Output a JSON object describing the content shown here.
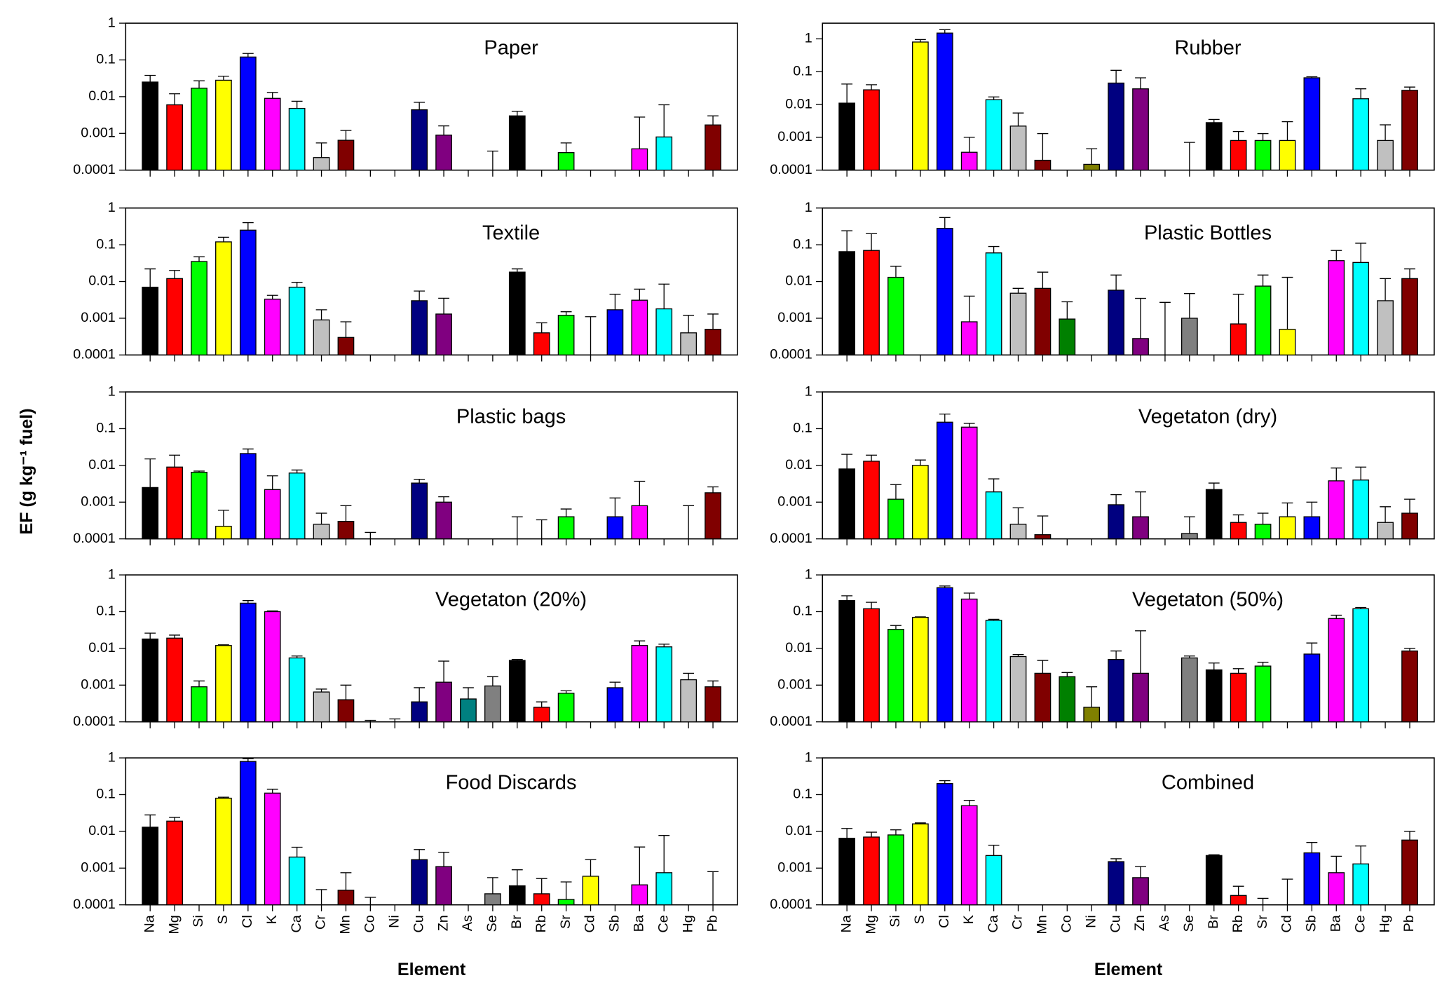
{
  "chart_data": [
    {
      "type": "bar",
      "title": "Paper",
      "log_scale": true,
      "ylim": [
        0.0001,
        1
      ],
      "yticks": [
        0.0001,
        0.001,
        0.01,
        0.1,
        1
      ],
      "categories": [
        "Na",
        "Mg",
        "Si",
        "S",
        "Cl",
        "K",
        "Ca",
        "Cr",
        "Mn",
        "Co",
        "Ni",
        "Cu",
        "Zn",
        "As",
        "Se",
        "Br",
        "Rb",
        "Sr",
        "Cd",
        "Sb",
        "Ba",
        "Ce",
        "Hg",
        "Pb"
      ],
      "colors": [
        "#000000",
        "#ff0000",
        "#00ff00",
        "#ffff00",
        "#0000ff",
        "#ff00ff",
        "#00ffff",
        "#c0c0c0",
        "#800000",
        "#008000",
        "#808000",
        "#000080",
        "#800080",
        "#008080",
        "#808080",
        "#000000",
        "#ff0000",
        "#00ff00",
        "#ffff00",
        "#0000ff",
        "#ff00ff",
        "#00ffff",
        "#c0c0c0",
        "#800000"
      ],
      "values": [
        0.025,
        0.006,
        0.017,
        0.028,
        0.12,
        0.009,
        0.0048,
        0.00022,
        0.00065,
        null,
        null,
        0.0044,
        0.0009,
        null,
        5e-05,
        0.003,
        null,
        0.0003,
        null,
        null,
        0.00038,
        0.0008,
        null,
        0.0017
      ],
      "errors": [
        0.013,
        0.006,
        0.01,
        0.008,
        0.03,
        0.004,
        0.0027,
        0.00033,
        0.00055,
        null,
        null,
        0.0026,
        0.0007,
        null,
        0.00028,
        0.001,
        null,
        0.00025,
        null,
        null,
        0.0024,
        0.0052,
        null,
        0.0013
      ]
    },
    {
      "type": "bar",
      "title": "Rubber",
      "log_scale": true,
      "ylim": [
        0.0001,
        3
      ],
      "yticks": [
        0.0001,
        0.001,
        0.01,
        0.1,
        1
      ],
      "categories": [
        "Na",
        "Mg",
        "Si",
        "S",
        "Cl",
        "K",
        "Ca",
        "Cr",
        "Mn",
        "Co",
        "Ni",
        "Cu",
        "Zn",
        "As",
        "Se",
        "Br",
        "Rb",
        "Sr",
        "Cd",
        "Sb",
        "Ba",
        "Ce",
        "Hg",
        "Pb"
      ],
      "colors": [
        "#000000",
        "#ff0000",
        "#00ff00",
        "#ffff00",
        "#0000ff",
        "#ff00ff",
        "#00ffff",
        "#c0c0c0",
        "#800000",
        "#008000",
        "#808000",
        "#000080",
        "#800080",
        "#008080",
        "#808080",
        "#000000",
        "#ff0000",
        "#00ff00",
        "#ffff00",
        "#0000ff",
        "#ff00ff",
        "#00ffff",
        "#c0c0c0",
        "#800000"
      ],
      "values": [
        0.011,
        0.028,
        null,
        0.8,
        1.5,
        0.00035,
        0.014,
        0.0022,
        0.0002,
        null,
        0.00015,
        0.045,
        0.03,
        null,
        5e-05,
        0.0028,
        0.0008,
        0.0008,
        0.0008,
        0.065,
        null,
        0.015,
        0.0008,
        0.027
      ],
      "errors": [
        0.031,
        0.012,
        null,
        0.15,
        0.4,
        0.00065,
        0.003,
        0.0033,
        0.0011,
        null,
        0.0003,
        0.065,
        0.035,
        null,
        0.00065,
        0.0007,
        0.0007,
        0.0005,
        0.0022,
        0.005,
        null,
        0.015,
        0.0016,
        0.007
      ]
    },
    {
      "type": "bar",
      "title": "Textile",
      "log_scale": true,
      "ylim": [
        0.0001,
        1
      ],
      "yticks": [
        0.0001,
        0.001,
        0.01,
        0.1,
        1
      ],
      "categories": [
        "Na",
        "Mg",
        "Si",
        "S",
        "Cl",
        "K",
        "Ca",
        "Cr",
        "Mn",
        "Co",
        "Ni",
        "Cu",
        "Zn",
        "As",
        "Se",
        "Br",
        "Rb",
        "Sr",
        "Cd",
        "Sb",
        "Ba",
        "Ce",
        "Hg",
        "Pb"
      ],
      "colors": [
        "#000000",
        "#ff0000",
        "#00ff00",
        "#ffff00",
        "#0000ff",
        "#ff00ff",
        "#00ffff",
        "#c0c0c0",
        "#800000",
        "#008000",
        "#808000",
        "#000080",
        "#800080",
        "#008080",
        "#808080",
        "#000000",
        "#ff0000",
        "#00ff00",
        "#ffff00",
        "#0000ff",
        "#ff00ff",
        "#00ffff",
        "#c0c0c0",
        "#800000"
      ],
      "values": [
        0.007,
        0.012,
        0.035,
        0.12,
        0.25,
        0.0033,
        0.007,
        0.0009,
        0.0003,
        null,
        null,
        0.003,
        0.0013,
        null,
        null,
        0.018,
        0.0004,
        0.0012,
        5e-05,
        0.0017,
        0.0031,
        0.0018,
        0.0004,
        0.0005
      ],
      "errors": [
        0.015,
        0.008,
        0.012,
        0.04,
        0.15,
        0.0009,
        0.0025,
        0.0008,
        0.0005,
        null,
        null,
        0.0025,
        0.0022,
        null,
        null,
        0.004,
        0.00035,
        0.0003,
        0.00105,
        0.0028,
        0.0031,
        0.0067,
        0.0008,
        0.0008
      ]
    },
    {
      "type": "bar",
      "title": "Plastic Bottles",
      "log_scale": true,
      "ylim": [
        0.0001,
        1
      ],
      "yticks": [
        0.0001,
        0.001,
        0.01,
        0.1,
        1
      ],
      "categories": [
        "Na",
        "Mg",
        "Si",
        "S",
        "Cl",
        "K",
        "Ca",
        "Cr",
        "Mn",
        "Co",
        "Ni",
        "Cu",
        "Zn",
        "As",
        "Se",
        "Br",
        "Rb",
        "Sr",
        "Cd",
        "Sb",
        "Ba",
        "Ce",
        "Hg",
        "Pb"
      ],
      "colors": [
        "#000000",
        "#ff0000",
        "#00ff00",
        "#ffff00",
        "#0000ff",
        "#ff00ff",
        "#00ffff",
        "#c0c0c0",
        "#800000",
        "#008000",
        "#808000",
        "#000080",
        "#800080",
        "#008080",
        "#808080",
        "#000000",
        "#ff0000",
        "#00ff00",
        "#ffff00",
        "#0000ff",
        "#ff00ff",
        "#00ffff",
        "#c0c0c0",
        "#800000"
      ],
      "values": [
        0.065,
        0.07,
        0.013,
        null,
        0.28,
        0.0008,
        0.06,
        0.0048,
        0.0065,
        0.00095,
        null,
        0.0058,
        0.00028,
        5e-05,
        0.001,
        null,
        0.0007,
        0.0075,
        0.0005,
        null,
        0.037,
        0.033,
        0.003,
        0.012
      ],
      "errors": [
        0.175,
        0.13,
        0.013,
        null,
        0.27,
        0.0032,
        0.03,
        0.0017,
        0.0115,
        0.00185,
        null,
        0.0092,
        0.0032,
        0.00265,
        0.0037,
        null,
        0.0038,
        0.0075,
        0.0125,
        null,
        0.033,
        0.077,
        0.009,
        0.01
      ]
    },
    {
      "type": "bar",
      "title": "Plastic bags",
      "y_label": "EF (g kg⁻¹ fuel)",
      "log_scale": true,
      "ylim": [
        0.0001,
        1
      ],
      "yticks": [
        0.0001,
        0.001,
        0.01,
        0.1,
        1
      ],
      "categories": [
        "Na",
        "Mg",
        "Si",
        "S",
        "Cl",
        "K",
        "Ca",
        "Cr",
        "Mn",
        "Co",
        "Ni",
        "Cu",
        "Zn",
        "As",
        "Se",
        "Br",
        "Rb",
        "Sr",
        "Cd",
        "Sb",
        "Ba",
        "Ce",
        "Hg",
        "Pb"
      ],
      "colors": [
        "#000000",
        "#ff0000",
        "#00ff00",
        "#ffff00",
        "#0000ff",
        "#ff00ff",
        "#00ffff",
        "#c0c0c0",
        "#800000",
        "#008000",
        "#808000",
        "#000080",
        "#800080",
        "#008080",
        "#808080",
        "#000000",
        "#ff0000",
        "#00ff00",
        "#ffff00",
        "#0000ff",
        "#ff00ff",
        "#00ffff",
        "#c0c0c0",
        "#800000"
      ],
      "values": [
        0.0025,
        0.009,
        0.0065,
        0.00022,
        0.021,
        0.0022,
        0.0062,
        0.00025,
        0.0003,
        5e-05,
        null,
        0.0033,
        0.001,
        null,
        null,
        5e-05,
        5e-05,
        0.0004,
        null,
        0.0004,
        0.0008,
        null,
        5e-05,
        0.0018
      ],
      "errors": [
        0.0125,
        0.01,
        0.0005,
        0.00038,
        0.007,
        0.003,
        0.0013,
        0.00025,
        0.0005,
        0.0001,
        null,
        0.0009,
        0.0004,
        null,
        null,
        0.00035,
        0.00028,
        0.00025,
        null,
        0.0009,
        0.0029,
        null,
        0.00075,
        0.0008
      ]
    },
    {
      "type": "bar",
      "title": "Vegetaton (dry)",
      "log_scale": true,
      "ylim": [
        0.0001,
        1
      ],
      "yticks": [
        0.0001,
        0.001,
        0.01,
        0.1,
        1
      ],
      "categories": [
        "Na",
        "Mg",
        "Si",
        "S",
        "Cl",
        "K",
        "Ca",
        "Cr",
        "Mn",
        "Co",
        "Ni",
        "Cu",
        "Zn",
        "As",
        "Se",
        "Br",
        "Rb",
        "Sr",
        "Cd",
        "Sb",
        "Ba",
        "Ce",
        "Hg",
        "Pb"
      ],
      "colors": [
        "#000000",
        "#ff0000",
        "#00ff00",
        "#ffff00",
        "#0000ff",
        "#ff00ff",
        "#00ffff",
        "#c0c0c0",
        "#800000",
        "#008000",
        "#808000",
        "#000080",
        "#800080",
        "#008080",
        "#808080",
        "#000000",
        "#ff0000",
        "#00ff00",
        "#ffff00",
        "#0000ff",
        "#ff00ff",
        "#00ffff",
        "#c0c0c0",
        "#800000"
      ],
      "values": [
        0.008,
        0.013,
        0.0012,
        0.01,
        0.15,
        0.11,
        0.0019,
        0.00025,
        0.00013,
        null,
        null,
        0.00085,
        0.0004,
        null,
        0.00014,
        0.0022,
        0.00028,
        0.00025,
        0.0004,
        0.0004,
        0.0038,
        0.004,
        0.00028,
        0.0005
      ],
      "errors": [
        0.012,
        0.006,
        0.0018,
        0.004,
        0.1,
        0.03,
        0.0024,
        0.00045,
        0.00029,
        null,
        null,
        0.00075,
        0.0015,
        null,
        0.00026,
        0.0011,
        0.00017,
        0.00025,
        0.00055,
        0.0006,
        0.0047,
        0.005,
        0.00047,
        0.0007
      ]
    },
    {
      "type": "bar",
      "title": "Vegetaton (20%)",
      "log_scale": true,
      "ylim": [
        0.0001,
        1
      ],
      "yticks": [
        0.0001,
        0.001,
        0.01,
        0.1,
        1
      ],
      "categories": [
        "Na",
        "Mg",
        "Si",
        "S",
        "Cl",
        "K",
        "Ca",
        "Cr",
        "Mn",
        "Co",
        "Ni",
        "Cu",
        "Zn",
        "As",
        "Se",
        "Br",
        "Rb",
        "Sr",
        "Cd",
        "Sb",
        "Ba",
        "Ce",
        "Hg",
        "Pb"
      ],
      "colors": [
        "#000000",
        "#ff0000",
        "#00ff00",
        "#ffff00",
        "#0000ff",
        "#ff00ff",
        "#00ffff",
        "#c0c0c0",
        "#800000",
        "#008000",
        "#808000",
        "#000080",
        "#800080",
        "#008080",
        "#808080",
        "#000000",
        "#ff0000",
        "#00ff00",
        "#ffff00",
        "#0000ff",
        "#ff00ff",
        "#00ffff",
        "#c0c0c0",
        "#800000"
      ],
      "values": [
        0.018,
        0.019,
        0.0009,
        0.012,
        0.17,
        0.1,
        0.0055,
        0.00065,
        0.0004,
        5e-05,
        5e-05,
        0.00035,
        0.0012,
        0.00042,
        0.00095,
        0.0047,
        0.00025,
        0.0006,
        null,
        0.00085,
        0.012,
        0.011,
        0.0014,
        0.0009
      ],
      "errors": [
        0.008,
        0.004,
        0.0004,
        0.0005,
        0.03,
        0.005,
        0.0007,
        0.00013,
        0.0006,
        6e-05,
        7e-05,
        0.0005,
        0.0033,
        0.00043,
        0.00075,
        0.0003,
        0.0001,
        0.0001,
        null,
        0.00035,
        0.004,
        0.002,
        0.0007,
        0.0004
      ]
    },
    {
      "type": "bar",
      "title": "Vegetaton (50%)",
      "log_scale": true,
      "ylim": [
        0.0001,
        1
      ],
      "yticks": [
        0.0001,
        0.001,
        0.01,
        0.1,
        1
      ],
      "categories": [
        "Na",
        "Mg",
        "Si",
        "S",
        "Cl",
        "K",
        "Ca",
        "Cr",
        "Mn",
        "Co",
        "Ni",
        "Cu",
        "Zn",
        "As",
        "Se",
        "Br",
        "Rb",
        "Sr",
        "Cd",
        "Sb",
        "Ba",
        "Ce",
        "Hg",
        "Pb"
      ],
      "colors": [
        "#000000",
        "#ff0000",
        "#00ff00",
        "#ffff00",
        "#0000ff",
        "#ff00ff",
        "#00ffff",
        "#c0c0c0",
        "#800000",
        "#008000",
        "#808000",
        "#000080",
        "#800080",
        "#008080",
        "#808080",
        "#000000",
        "#ff0000",
        "#00ff00",
        "#ffff00",
        "#0000ff",
        "#ff00ff",
        "#00ffff",
        "#c0c0c0",
        "#800000"
      ],
      "values": [
        0.2,
        0.12,
        0.033,
        0.07,
        0.45,
        0.22,
        0.058,
        0.006,
        0.0021,
        0.0017,
        0.00025,
        0.005,
        0.0021,
        null,
        0.0055,
        0.0026,
        0.0021,
        0.0033,
        null,
        0.007,
        0.065,
        0.12,
        null,
        0.0085
      ],
      "errors": [
        0.07,
        0.06,
        0.009,
        0.002,
        0.05,
        0.1,
        0.004,
        0.0008,
        0.0026,
        0.0005,
        0.00065,
        0.0035,
        0.028,
        null,
        0.0007,
        0.0014,
        0.0007,
        0.0009,
        null,
        0.007,
        0.015,
        0.01,
        null,
        0.0015
      ]
    },
    {
      "type": "bar",
      "title": "Food Discards",
      "x_label": "Element",
      "log_scale": true,
      "ylim": [
        0.0001,
        1
      ],
      "yticks": [
        0.0001,
        0.001,
        0.01,
        0.1,
        1
      ],
      "categories": [
        "Na",
        "Mg",
        "Si",
        "S",
        "Cl",
        "K",
        "Ca",
        "Cr",
        "Mn",
        "Co",
        "Ni",
        "Cu",
        "Zn",
        "As",
        "Se",
        "Br",
        "Rb",
        "Sr",
        "Cd",
        "Sb",
        "Ba",
        "Ce",
        "Hg",
        "Pb"
      ],
      "colors": [
        "#000000",
        "#ff0000",
        "#00ff00",
        "#ffff00",
        "#0000ff",
        "#ff00ff",
        "#00ffff",
        "#c0c0c0",
        "#800000",
        "#008000",
        "#808000",
        "#000080",
        "#800080",
        "#008080",
        "#808080",
        "#000000",
        "#ff0000",
        "#00ff00",
        "#ffff00",
        "#0000ff",
        "#ff00ff",
        "#00ffff",
        "#c0c0c0",
        "#800000"
      ],
      "values": [
        0.013,
        0.019,
        null,
        0.08,
        0.8,
        0.11,
        0.002,
        5e-05,
        0.00025,
        5e-05,
        null,
        0.0017,
        0.0011,
        null,
        0.0002,
        0.00033,
        0.0002,
        0.00014,
        0.0006,
        null,
        0.00035,
        0.00075,
        null,
        0.0001
      ],
      "errors": [
        0.015,
        0.005,
        null,
        0.005,
        0.15,
        0.03,
        0.0017,
        0.00021,
        0.0005,
        0.00011,
        null,
        0.0015,
        0.0016,
        null,
        0.00035,
        0.00057,
        0.00032,
        0.00028,
        0.0011,
        null,
        0.0034,
        0.007,
        null,
        0.0007
      ]
    },
    {
      "type": "bar",
      "title": "Combined",
      "x_label": "Element",
      "log_scale": true,
      "ylim": [
        0.0001,
        1
      ],
      "yticks": [
        0.0001,
        0.001,
        0.01,
        0.1,
        1
      ],
      "categories": [
        "Na",
        "Mg",
        "Si",
        "S",
        "Cl",
        "K",
        "Ca",
        "Cr",
        "Mn",
        "Co",
        "Ni",
        "Cu",
        "Zn",
        "As",
        "Se",
        "Br",
        "Rb",
        "Sr",
        "Cd",
        "Sb",
        "Ba",
        "Ce",
        "Hg",
        "Pb"
      ],
      "colors": [
        "#000000",
        "#ff0000",
        "#00ff00",
        "#ffff00",
        "#0000ff",
        "#ff00ff",
        "#00ffff",
        "#c0c0c0",
        "#800000",
        "#008000",
        "#808000",
        "#000080",
        "#800080",
        "#008080",
        "#808080",
        "#000000",
        "#ff0000",
        "#00ff00",
        "#ffff00",
        "#0000ff",
        "#ff00ff",
        "#00ffff",
        "#c0c0c0",
        "#800000"
      ],
      "values": [
        0.0065,
        0.007,
        0.008,
        0.016,
        0.2,
        0.05,
        0.0022,
        null,
        null,
        null,
        null,
        0.0015,
        0.00055,
        null,
        null,
        0.0022,
        0.00018,
        5e-05,
        5e-05,
        0.0026,
        0.00075,
        0.0013,
        null,
        0.0058
      ],
      "errors": [
        0.0055,
        0.0025,
        0.003,
        0.001,
        0.04,
        0.02,
        0.002,
        null,
        null,
        null,
        null,
        0.0003,
        0.00055,
        null,
        null,
        0.0001,
        0.00014,
        0.0001,
        0.00045,
        0.0024,
        0.00135,
        0.0027,
        null,
        0.0042
      ]
    }
  ]
}
